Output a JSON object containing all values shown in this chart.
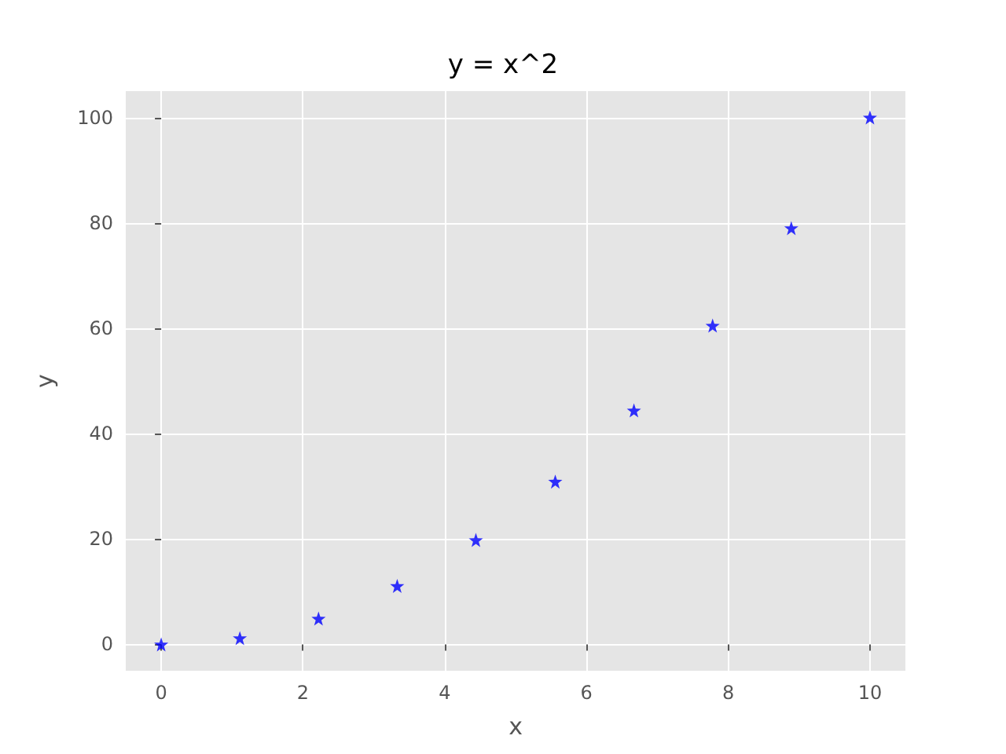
{
  "chart_data": {
    "type": "scatter",
    "title": "y = x^2",
    "xlabel": "x",
    "ylabel": "y",
    "x": [
      0,
      1.11,
      2.22,
      3.33,
      4.44,
      5.56,
      6.67,
      7.78,
      8.89,
      10
    ],
    "series": [
      {
        "color": "#0000ff",
        "values": [
          0,
          1.2,
          4.9,
          11.1,
          19.8,
          30.9,
          44.4,
          60.5,
          79.0,
          100
        ]
      }
    ],
    "marker": "star",
    "xlim": [
      -0.5,
      10.5
    ],
    "ylim": [
      -5,
      105
    ],
    "xticks": [
      0,
      2,
      4,
      6,
      8,
      10
    ],
    "yticks": [
      0,
      20,
      40,
      60,
      80,
      100
    ],
    "grid": true
  }
}
